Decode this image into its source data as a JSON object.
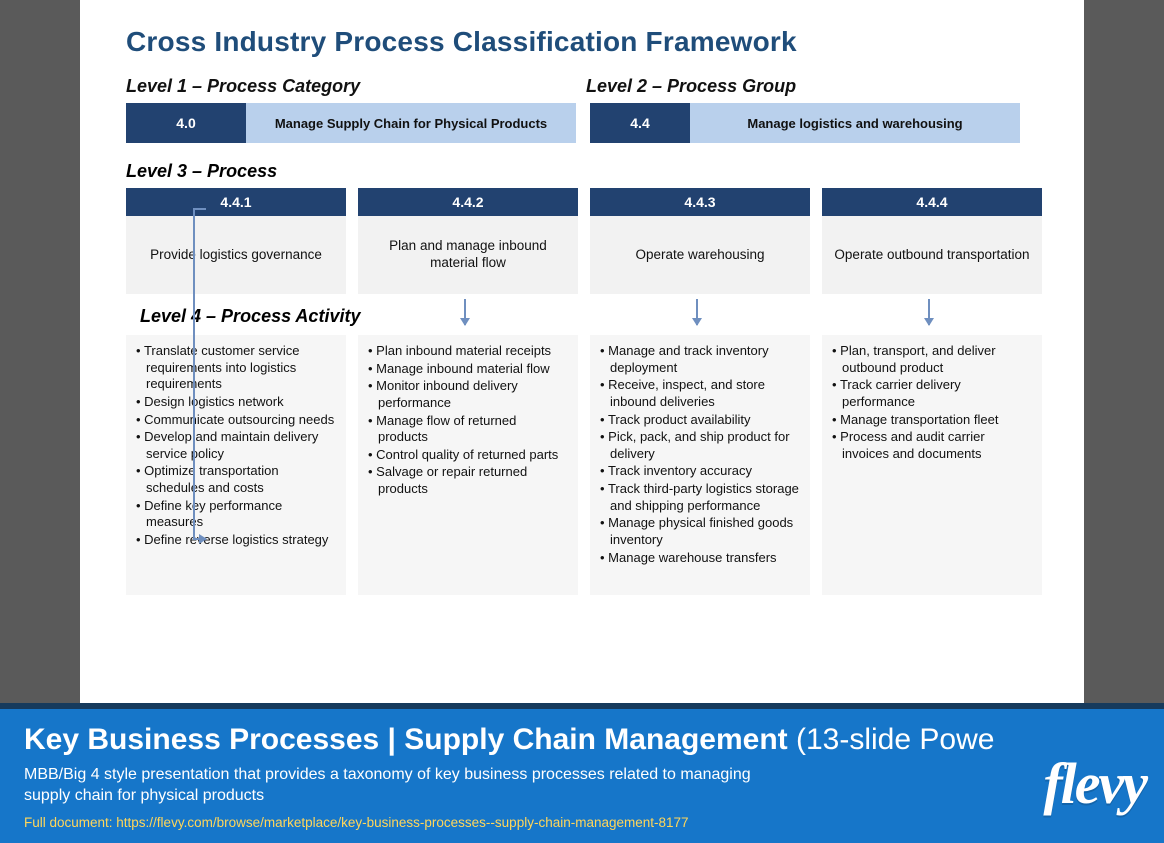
{
  "colors": {
    "page_bg": "#5a5a5a",
    "slide_bg": "#ffffff",
    "title": "#1f4d7a",
    "header_dark": "#224270",
    "header_light": "#b9d0ec",
    "panel_bg": "#f2f2f2",
    "activity_bg": "#f6f6f6",
    "arrow": "#6f8fbf",
    "banner_bg": "#1676c9",
    "banner_border": "#163a5c",
    "link": "#ffd65a",
    "text": "#111111"
  },
  "title": "Cross Industry Process Classification Framework",
  "levels": {
    "l1_label": "Level 1 – Process Category",
    "l2_label": "Level 2 – Process Group",
    "l3_label": "Level 3 – Process",
    "l4_label": "Level 4 – Process Activity"
  },
  "l1": {
    "num": "4.0",
    "name": "Manage Supply Chain for Physical Products"
  },
  "l2": {
    "num": "4.4",
    "name": "Manage logistics and warehousing"
  },
  "processes": [
    {
      "num": "4.4.1",
      "name": "Provide logistics governance",
      "activities": [
        "Translate customer service requirements into logistics requirements",
        "Design logistics network",
        "Communicate outsourcing needs",
        "Develop and maintain delivery service policy",
        "Optimize transportation schedules and costs",
        "Define key performance measures",
        "Define reverse logistics strategy"
      ]
    },
    {
      "num": "4.4.2",
      "name": "Plan and manage inbound material flow",
      "activities": [
        "Plan inbound material receipts",
        "Manage inbound material flow",
        "Monitor inbound delivery performance",
        "Manage flow of returned products",
        "Control quality of returned parts",
        "Salvage or repair returned products"
      ]
    },
    {
      "num": "4.4.3",
      "name": "Operate warehousing",
      "activities": [
        "Manage and track inventory deployment",
        "Receive, inspect, and store inbound deliveries",
        "Track product availability",
        "Pick, pack, and ship product for delivery",
        "Track inventory accuracy",
        "Track third-party logistics storage and shipping performance",
        "Manage physical finished goods inventory",
        "Manage warehouse transfers"
      ]
    },
    {
      "num": "4.4.4",
      "name": "Operate outbound transportation",
      "activities": [
        "Plan, transport, and deliver outbound product",
        "Track carrier delivery performance",
        "Manage transportation fleet",
        "Process and audit carrier invoices and documents"
      ]
    }
  ],
  "banner": {
    "title_main": "Key Business Processes | Supply Chain Management",
    "title_suffix": " (13-slide Powe",
    "desc": "MBB/Big 4 style presentation that provides a taxonomy of key business processes related to managing supply chain for physical products",
    "link_label": "Full document: https://flevy.com/browse/marketplace/key-business-processes--supply-chain-management-8177",
    "logo": "flevy"
  }
}
